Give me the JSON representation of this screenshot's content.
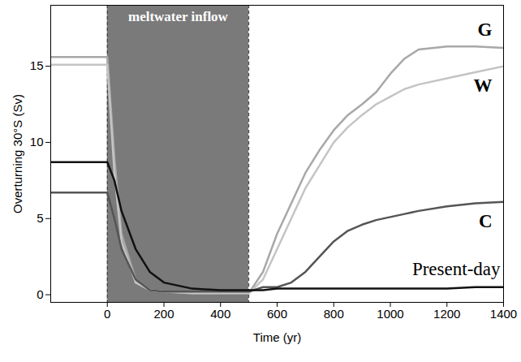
{
  "chart_data": {
    "type": "line",
    "xlabel": "Time (yr)",
    "ylabel": "Overturning 30°S (Sv)",
    "xlim": [
      -200,
      1400
    ],
    "ylim": [
      -0.5,
      19
    ],
    "xticks": [
      0,
      200,
      400,
      600,
      800,
      1000,
      1200,
      1400
    ],
    "yticks": [
      0,
      5,
      10,
      15
    ],
    "x": [
      -200,
      -100,
      0,
      25,
      50,
      100,
      150,
      200,
      300,
      400,
      500,
      550,
      600,
      650,
      700,
      750,
      800,
      850,
      900,
      950,
      1000,
      1050,
      1100,
      1200,
      1300,
      1400
    ],
    "series": [
      {
        "name": "G",
        "color": "#a8a8a8",
        "values": [
          15.6,
          15.6,
          15.6,
          9,
          4,
          1,
          0.3,
          0.2,
          0.1,
          0.1,
          0.1,
          1.5,
          4,
          6,
          8,
          9.5,
          10.8,
          11.8,
          12.5,
          13.3,
          14.5,
          15.5,
          16.1,
          16.3,
          16.3,
          16.2
        ]
      },
      {
        "name": "W",
        "color": "#c4c4c4",
        "values": [
          15.1,
          15.1,
          15.1,
          8,
          3.5,
          0.8,
          0.3,
          0.2,
          0.1,
          0.1,
          0.1,
          1,
          3,
          5,
          7,
          8.5,
          10,
          11,
          11.8,
          12.5,
          13,
          13.5,
          13.8,
          14.2,
          14.6,
          15
        ]
      },
      {
        "name": "C",
        "color": "#555555",
        "values": [
          6.7,
          6.7,
          6.7,
          5,
          3,
          1,
          0.3,
          0.2,
          0.2,
          0.2,
          0.2,
          0.5,
          0.5,
          0.8,
          1.5,
          2.5,
          3.5,
          4.2,
          4.6,
          4.9,
          5.1,
          5.3,
          5.5,
          5.8,
          6,
          6.1
        ]
      },
      {
        "name": "Present-day",
        "color": "#111111",
        "values": [
          8.7,
          8.7,
          8.7,
          7.5,
          5.5,
          3,
          1.5,
          0.8,
          0.4,
          0.3,
          0.3,
          0.3,
          0.4,
          0.4,
          0.4,
          0.4,
          0.4,
          0.4,
          0.4,
          0.4,
          0.4,
          0.4,
          0.4,
          0.4,
          0.5,
          0.5
        ]
      }
    ],
    "shaded_region": {
      "x": [
        0,
        500
      ],
      "label": "meltwater inflow",
      "color": "#7a7a7a"
    }
  }
}
